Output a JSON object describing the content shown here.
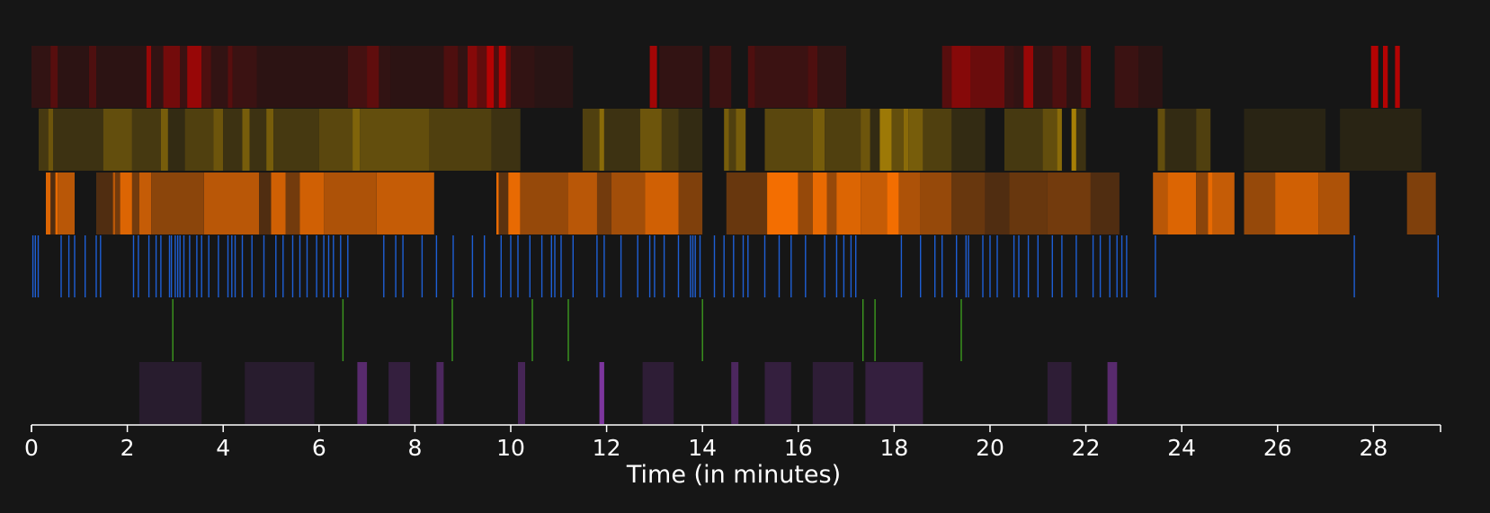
{
  "chart_data": {
    "type": "timeline",
    "xlabel": "Time (in minutes)",
    "xlim": [
      0,
      29.4
    ],
    "x_ticks": [
      0,
      2,
      4,
      6,
      8,
      10,
      12,
      14,
      16,
      18,
      20,
      22,
      24,
      26,
      28
    ],
    "tracks": [
      {
        "color": "#d00000",
        "kind": "intervals",
        "intervals": [
          [
            0.0,
            0.5,
            0.15
          ],
          [
            0.4,
            0.55,
            0.35
          ],
          [
            0.55,
            1.2,
            0.12
          ],
          [
            1.2,
            1.35,
            0.3
          ],
          [
            1.35,
            2.4,
            0.12
          ],
          [
            2.4,
            2.5,
            0.7
          ],
          [
            2.5,
            2.75,
            0.15
          ],
          [
            2.75,
            3.1,
            0.5
          ],
          [
            3.1,
            3.25,
            0.2
          ],
          [
            3.25,
            3.55,
            0.7
          ],
          [
            3.55,
            3.75,
            0.3
          ],
          [
            3.75,
            4.1,
            0.15
          ],
          [
            4.1,
            4.2,
            0.35
          ],
          [
            4.2,
            4.7,
            0.2
          ],
          [
            4.7,
            6.6,
            0.12
          ],
          [
            6.6,
            7.0,
            0.25
          ],
          [
            7.0,
            7.25,
            0.4
          ],
          [
            7.25,
            7.5,
            0.15
          ],
          [
            7.5,
            8.6,
            0.12
          ],
          [
            8.6,
            8.9,
            0.3
          ],
          [
            8.9,
            9.1,
            0.15
          ],
          [
            9.1,
            9.3,
            0.6
          ],
          [
            9.3,
            9.5,
            0.4
          ],
          [
            9.5,
            9.65,
            0.85
          ],
          [
            9.65,
            9.75,
            0.3
          ],
          [
            9.75,
            9.9,
            0.85
          ],
          [
            9.9,
            10.0,
            0.35
          ],
          [
            10.0,
            10.5,
            0.15
          ],
          [
            10.5,
            11.3,
            0.1
          ],
          [
            12.9,
            13.05,
            0.75
          ],
          [
            13.1,
            14.0,
            0.15
          ],
          [
            14.15,
            14.6,
            0.2
          ],
          [
            14.95,
            15.1,
            0.3
          ],
          [
            15.1,
            16.2,
            0.2
          ],
          [
            16.2,
            16.4,
            0.3
          ],
          [
            16.4,
            17.0,
            0.15
          ],
          [
            19.0,
            19.2,
            0.35
          ],
          [
            19.2,
            19.6,
            0.6
          ],
          [
            19.6,
            20.3,
            0.45
          ],
          [
            20.3,
            20.5,
            0.2
          ],
          [
            20.5,
            20.7,
            0.15
          ],
          [
            20.7,
            20.9,
            0.7
          ],
          [
            20.9,
            21.3,
            0.15
          ],
          [
            21.3,
            21.6,
            0.3
          ],
          [
            21.6,
            21.9,
            0.12
          ],
          [
            21.9,
            22.1,
            0.45
          ],
          [
            22.6,
            23.1,
            0.2
          ],
          [
            23.1,
            23.6,
            0.12
          ],
          [
            27.95,
            28.1,
            0.85
          ],
          [
            28.2,
            28.3,
            0.85
          ],
          [
            28.45,
            28.55,
            0.85
          ]
        ]
      },
      {
        "color": "#d7a300",
        "kind": "intervals",
        "intervals": [
          [
            0.15,
            0.35,
            0.25
          ],
          [
            0.35,
            0.45,
            0.45
          ],
          [
            0.45,
            1.5,
            0.2
          ],
          [
            1.5,
            2.1,
            0.4
          ],
          [
            2.1,
            2.7,
            0.25
          ],
          [
            2.7,
            2.85,
            0.5
          ],
          [
            2.85,
            3.2,
            0.15
          ],
          [
            3.2,
            3.8,
            0.3
          ],
          [
            3.8,
            4.0,
            0.45
          ],
          [
            4.0,
            4.4,
            0.2
          ],
          [
            4.4,
            4.55,
            0.5
          ],
          [
            4.55,
            4.9,
            0.2
          ],
          [
            4.9,
            5.05,
            0.5
          ],
          [
            5.05,
            6.0,
            0.25
          ],
          [
            6.0,
            6.7,
            0.35
          ],
          [
            6.7,
            6.85,
            0.55
          ],
          [
            6.85,
            8.3,
            0.4
          ],
          [
            8.3,
            9.6,
            0.3
          ],
          [
            9.6,
            10.2,
            0.2
          ],
          [
            11.5,
            11.85,
            0.3
          ],
          [
            11.85,
            11.95,
            0.6
          ],
          [
            11.95,
            12.7,
            0.2
          ],
          [
            12.7,
            13.15,
            0.45
          ],
          [
            13.15,
            13.5,
            0.25
          ],
          [
            13.5,
            14.0,
            0.15
          ],
          [
            14.45,
            14.55,
            0.5
          ],
          [
            14.55,
            14.7,
            0.3
          ],
          [
            14.7,
            14.9,
            0.5
          ],
          [
            15.3,
            16.3,
            0.35
          ],
          [
            16.3,
            16.55,
            0.5
          ],
          [
            16.55,
            17.3,
            0.3
          ],
          [
            17.3,
            17.5,
            0.45
          ],
          [
            17.5,
            17.7,
            0.15
          ],
          [
            17.7,
            17.95,
            0.7
          ],
          [
            17.95,
            18.2,
            0.4
          ],
          [
            18.2,
            18.3,
            0.6
          ],
          [
            18.3,
            18.6,
            0.5
          ],
          [
            18.6,
            19.2,
            0.3
          ],
          [
            19.2,
            19.9,
            0.15
          ],
          [
            20.3,
            21.1,
            0.25
          ],
          [
            21.1,
            21.4,
            0.4
          ],
          [
            21.4,
            21.5,
            0.6
          ],
          [
            21.7,
            21.8,
            0.75
          ],
          [
            21.8,
            22.0,
            0.2
          ],
          [
            23.5,
            23.65,
            0.4
          ],
          [
            23.65,
            24.3,
            0.15
          ],
          [
            24.3,
            24.6,
            0.3
          ],
          [
            25.3,
            27.0,
            0.1
          ],
          [
            27.3,
            29.0,
            0.1
          ]
        ]
      },
      {
        "color": "#ff7300",
        "kind": "intervals",
        "intervals": [
          [
            0.3,
            0.4,
            0.85
          ],
          [
            0.4,
            0.5,
            0.25
          ],
          [
            0.5,
            0.55,
            0.9
          ],
          [
            0.55,
            0.9,
            0.7
          ],
          [
            1.35,
            1.7,
            0.25
          ],
          [
            1.7,
            1.75,
            0.7
          ],
          [
            1.75,
            1.85,
            0.4
          ],
          [
            1.85,
            2.1,
            0.85
          ],
          [
            2.1,
            2.25,
            0.4
          ],
          [
            2.25,
            2.5,
            0.75
          ],
          [
            2.5,
            3.6,
            0.5
          ],
          [
            3.6,
            4.75,
            0.7
          ],
          [
            4.75,
            5.0,
            0.25
          ],
          [
            5.0,
            5.3,
            0.8
          ],
          [
            5.3,
            5.6,
            0.4
          ],
          [
            5.6,
            6.1,
            0.8
          ],
          [
            6.1,
            7.2,
            0.65
          ],
          [
            7.2,
            8.4,
            0.75
          ],
          [
            9.7,
            9.75,
            0.9
          ],
          [
            9.75,
            9.95,
            0.3
          ],
          [
            9.95,
            10.2,
            0.9
          ],
          [
            10.2,
            11.2,
            0.55
          ],
          [
            11.2,
            11.8,
            0.7
          ],
          [
            11.8,
            12.1,
            0.4
          ],
          [
            12.1,
            12.8,
            0.6
          ],
          [
            12.8,
            13.5,
            0.8
          ],
          [
            13.5,
            14.0,
            0.45
          ],
          [
            14.5,
            15.35,
            0.35
          ],
          [
            15.35,
            16.0,
            0.95
          ],
          [
            16.0,
            16.3,
            0.55
          ],
          [
            16.3,
            16.6,
            0.9
          ],
          [
            16.6,
            16.8,
            0.55
          ],
          [
            16.8,
            17.3,
            0.85
          ],
          [
            17.3,
            17.85,
            0.75
          ],
          [
            17.85,
            18.1,
            0.95
          ],
          [
            18.1,
            18.55,
            0.65
          ],
          [
            18.55,
            19.2,
            0.55
          ],
          [
            19.2,
            19.9,
            0.35
          ],
          [
            19.9,
            20.4,
            0.25
          ],
          [
            20.4,
            21.2,
            0.35
          ],
          [
            21.2,
            22.1,
            0.4
          ],
          [
            22.1,
            22.7,
            0.25
          ],
          [
            23.4,
            23.7,
            0.7
          ],
          [
            23.7,
            24.3,
            0.85
          ],
          [
            24.3,
            24.55,
            0.5
          ],
          [
            24.55,
            24.65,
            0.9
          ],
          [
            24.65,
            25.1,
            0.75
          ],
          [
            25.3,
            25.95,
            0.55
          ],
          [
            25.95,
            26.85,
            0.8
          ],
          [
            26.85,
            27.5,
            0.65
          ],
          [
            28.7,
            29.3,
            0.45
          ]
        ]
      },
      {
        "color": "#1e5fd6",
        "kind": "events",
        "events": [
          0.03,
          0.08,
          0.14,
          0.62,
          0.78,
          0.9,
          1.12,
          1.35,
          1.44,
          2.13,
          2.23,
          2.45,
          2.6,
          2.7,
          2.88,
          2.92,
          3.0,
          3.05,
          3.1,
          3.18,
          3.3,
          3.45,
          3.55,
          3.7,
          3.9,
          4.1,
          4.18,
          4.25,
          4.4,
          4.6,
          4.85,
          5.1,
          5.25,
          5.45,
          5.6,
          5.75,
          5.95,
          6.1,
          6.2,
          6.3,
          6.45,
          6.6,
          7.35,
          7.6,
          7.75,
          8.15,
          8.45,
          8.8,
          9.2,
          9.45,
          9.8,
          10.0,
          10.15,
          10.4,
          10.65,
          10.85,
          10.92,
          11.05,
          11.3,
          11.8,
          11.95,
          12.3,
          12.65,
          12.9,
          13.0,
          13.2,
          13.5,
          13.75,
          13.8,
          13.85,
          13.95,
          14.25,
          14.45,
          14.65,
          14.85,
          14.95,
          15.3,
          15.6,
          15.85,
          16.15,
          16.55,
          16.8,
          16.95,
          17.1,
          17.2,
          18.15,
          18.55,
          18.85,
          19.0,
          19.3,
          19.5,
          19.55,
          19.85,
          20.0,
          20.15,
          20.5,
          20.6,
          20.8,
          21.0,
          21.3,
          21.5,
          21.8,
          22.15,
          22.3,
          22.5,
          22.65,
          22.75,
          22.85,
          23.45,
          27.6,
          29.35
        ]
      },
      {
        "color": "#3c9a1e",
        "kind": "events",
        "events": [
          2.95,
          6.5,
          8.78,
          10.45,
          11.2,
          14.0,
          17.35,
          17.6,
          19.4
        ]
      },
      {
        "color": "#8e3bb5",
        "kind": "intervals",
        "intervals": [
          [
            2.25,
            3.55,
            0.15
          ],
          [
            4.45,
            5.9,
            0.15
          ],
          [
            6.8,
            7.0,
            0.55
          ],
          [
            7.45,
            7.9,
            0.25
          ],
          [
            8.45,
            8.6,
            0.45
          ],
          [
            10.15,
            10.3,
            0.4
          ],
          [
            11.85,
            11.95,
            0.85
          ],
          [
            12.75,
            13.4,
            0.2
          ],
          [
            14.6,
            14.75,
            0.45
          ],
          [
            15.3,
            15.85,
            0.25
          ],
          [
            16.3,
            17.15,
            0.2
          ],
          [
            17.4,
            18.6,
            0.25
          ],
          [
            21.2,
            21.7,
            0.2
          ],
          [
            22.45,
            22.65,
            0.55
          ]
        ]
      }
    ]
  }
}
